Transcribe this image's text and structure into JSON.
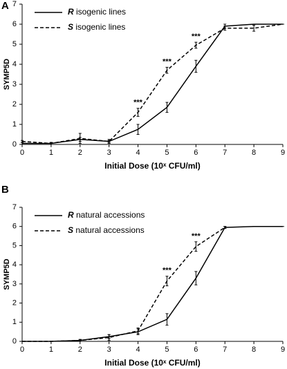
{
  "chart_data": [
    {
      "type": "line",
      "panel_label": "A",
      "ylabel": "SYMP5D",
      "xlabel": "Initial Dose (10ˣ CFU/ml)",
      "x": [
        0,
        1,
        2,
        3,
        4,
        5,
        6,
        7,
        8,
        9
      ],
      "series": [
        {
          "name": "R isogenic lines",
          "color": "#000000",
          "dash": false,
          "values": [
            0.05,
            0.05,
            0.25,
            0.15,
            0.75,
            1.85,
            3.9,
            5.9,
            6.0,
            6.0
          ],
          "errors": [
            0.05,
            0.05,
            0.1,
            0.05,
            0.25,
            0.25,
            0.3,
            0.1,
            0,
            0
          ]
        },
        {
          "name": "S isogenic lines",
          "color": "#000000",
          "dash": true,
          "values": [
            0.15,
            0.05,
            0.3,
            0.15,
            1.6,
            3.7,
            4.95,
            5.8,
            5.8,
            6.0
          ],
          "errors": [
            0.05,
            0.05,
            0.25,
            0.1,
            0.2,
            0.15,
            0.15,
            0.1,
            0.15,
            0
          ]
        }
      ],
      "annotations": [
        {
          "x": 4,
          "text": "***"
        },
        {
          "x": 5,
          "text": "***"
        },
        {
          "x": 6,
          "text": "***"
        }
      ],
      "xlim": [
        0,
        9
      ],
      "xticks": [
        0,
        1,
        2,
        3,
        4,
        5,
        6,
        7,
        8,
        9
      ],
      "ylim": [
        0,
        7
      ],
      "yticks": [
        0,
        1,
        2,
        3,
        4,
        5,
        6,
        7
      ],
      "grid": false,
      "legend": "upper left"
    },
    {
      "type": "line",
      "panel_label": "B",
      "ylabel": "SYMP5D",
      "xlabel": "Initial Dose (10ˣ CFU/ml)",
      "x": [
        0,
        1,
        2,
        3,
        4,
        5,
        6,
        7,
        8,
        9
      ],
      "series": [
        {
          "name": "R natural accessions",
          "color": "#000000",
          "dash": false,
          "values": [
            0,
            0,
            0.05,
            0.25,
            0.5,
            1.15,
            3.3,
            5.95,
            6.0,
            6.0
          ],
          "errors": [
            0,
            0,
            0.05,
            0.1,
            0.15,
            0.3,
            0.35,
            0.05,
            0,
            0
          ]
        },
        {
          "name": "S natural accessions",
          "color": "#000000",
          "dash": true,
          "values": [
            0,
            0,
            0.05,
            0.2,
            0.55,
            3.15,
            4.95,
            5.95,
            null,
            null
          ],
          "errors": [
            0,
            0,
            0.05,
            0.15,
            0.15,
            0.25,
            0.25,
            0.05,
            null,
            null
          ]
        }
      ],
      "annotations": [
        {
          "x": 5,
          "text": "***"
        },
        {
          "x": 6,
          "text": "***"
        }
      ],
      "xlim": [
        0,
        9
      ],
      "xticks": [
        0,
        1,
        2,
        3,
        4,
        5,
        6,
        7,
        8,
        9
      ],
      "ylim": [
        0,
        7
      ],
      "yticks": [
        0,
        1,
        2,
        3,
        4,
        5,
        6,
        7
      ],
      "grid": false,
      "legend": "upper left"
    }
  ]
}
